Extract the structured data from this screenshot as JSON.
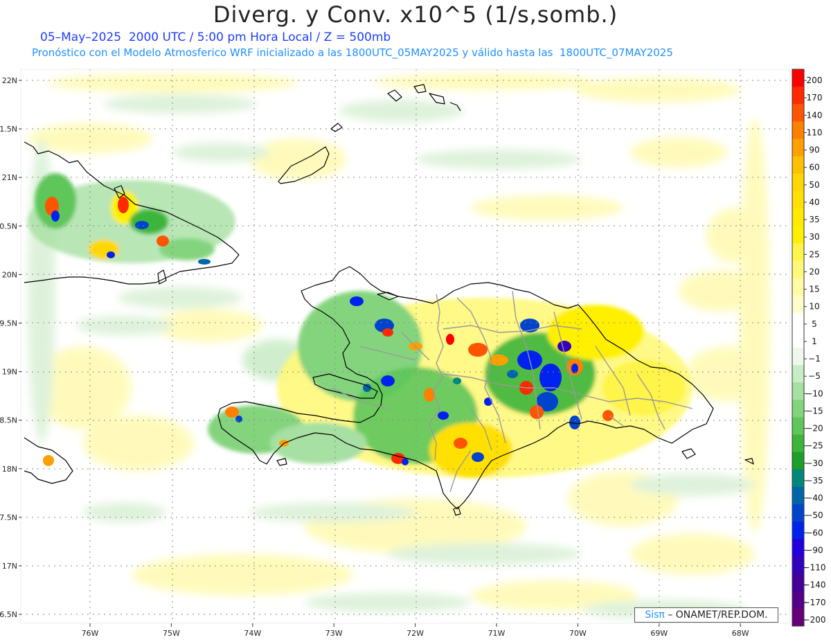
{
  "header": {
    "title": "Diverg. y Conv. x10^5 (1/s,somb.)",
    "subtitle_time": "05–May–2025  2000 UTC / 5:00 pm Hora Local / Z = 500mb",
    "subtitle_model": "Pronóstico con el Modelo Atmosferico WRF inicializado a las 1800UTC_05MAY2025 y válido hasta las  1800UTC_07MAY2025"
  },
  "axes": {
    "lat_labels": [
      "22N",
      "1.5N",
      "21N",
      "0.5N",
      "20N",
      "9.5N",
      "19N",
      "8.5N",
      "18N",
      "7.5N",
      "17N",
      "6.5N"
    ],
    "lon_labels": [
      "76W",
      "75W",
      "74W",
      "73W",
      "72W",
      "71W",
      "70W",
      "69W",
      "68W"
    ]
  },
  "colorbar": {
    "labels": [
      "200",
      "170",
      "140",
      "110",
      "90",
      "60",
      "50",
      "40",
      "35",
      "30",
      "25",
      "20",
      "15",
      "10",
      "5",
      "1",
      "−1",
      "−5",
      "−10",
      "−15",
      "−20",
      "−25",
      "−30",
      "−35",
      "−40",
      "−50",
      "−60",
      "−90",
      "−110",
      "−140",
      "−170",
      "−200"
    ],
    "colors": [
      "#ff0000",
      "#ff2a00",
      "#ff5500",
      "#ff7f00",
      "#ffa000",
      "#ffc000",
      "#ffd700",
      "#ffe000",
      "#ffea00",
      "#fff000",
      "#fff44a",
      "#fff87a",
      "#fffba5",
      "#fffdcc",
      "#ffffff",
      "#ffffff",
      "#f0f8ee",
      "#c8ecc5",
      "#a6e0a2",
      "#84d47e",
      "#5ec65a",
      "#3cb53a",
      "#1e9e2a",
      "#00887a",
      "#0066aa",
      "#0044cc",
      "#0022ee",
      "#2200dd",
      "#3300bb",
      "#440099",
      "#550088",
      "#660077"
    ]
  },
  "credit": {
    "brand": "Sisπ",
    "org": " – ONAMET/REP.DOM."
  }
}
